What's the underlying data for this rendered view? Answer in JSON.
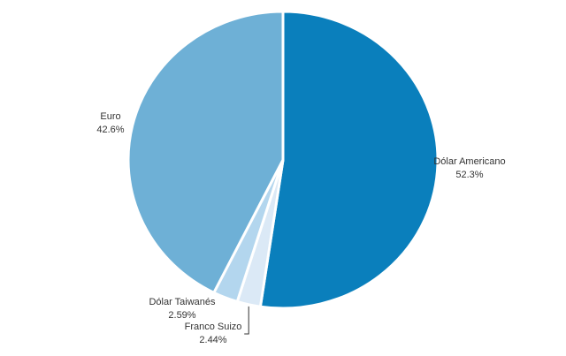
{
  "chart_data": {
    "type": "pie",
    "categories": [
      "Dólar Americano",
      "Franco Suizo",
      "Dólar Taiwanés",
      "Euro"
    ],
    "values": [
      52.3,
      2.44,
      2.59,
      42.6
    ],
    "value_labels": [
      "52.3%",
      "2.44%",
      "2.59%",
      "42.6%"
    ],
    "colors": [
      "#0a7fbc",
      "#dbe9f6",
      "#b3d6ee",
      "#6eb0d6"
    ]
  }
}
